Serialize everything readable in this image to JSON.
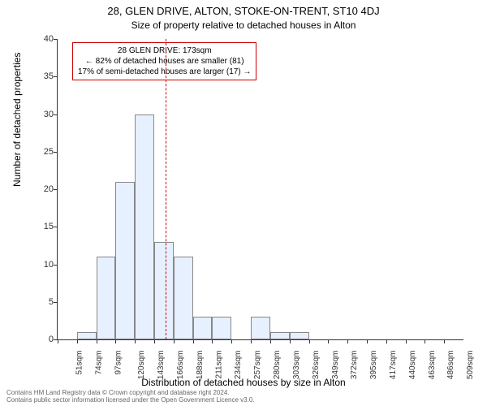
{
  "title": "28, GLEN DRIVE, ALTON, STOKE-ON-TRENT, ST10 4DJ",
  "subtitle": "Size of property relative to detached houses in Alton",
  "y_axis_label": "Number of detached properties",
  "x_axis_label": "Distribution of detached houses by size in Alton",
  "chart": {
    "type": "histogram",
    "bar_fill": "#e6f0ff",
    "bar_stroke": "#888888",
    "background": "#ffffff",
    "ylim": [
      0,
      40
    ],
    "ytick_step": 5,
    "yticks": [
      0,
      5,
      10,
      15,
      20,
      25,
      30,
      35,
      40
    ],
    "x_categories": [
      "51sqm",
      "74sqm",
      "97sqm",
      "120sqm",
      "143sqm",
      "166sqm",
      "188sqm",
      "211sqm",
      "234sqm",
      "257sqm",
      "280sqm",
      "303sqm",
      "326sqm",
      "349sqm",
      "372sqm",
      "395sqm",
      "417sqm",
      "440sqm",
      "463sqm",
      "486sqm",
      "509sqm"
    ],
    "values": [
      0,
      1,
      11,
      21,
      30,
      13,
      11,
      3,
      3,
      0,
      3,
      1,
      1,
      0,
      0,
      0,
      0,
      0,
      0,
      0,
      0
    ],
    "reference_line": {
      "x_value": 173,
      "x_min": 51,
      "x_max": 509,
      "color": "#cc0000",
      "style": "dashed"
    },
    "label_fontsize": 12,
    "tick_fontsize": 11
  },
  "annotation": {
    "line1": "28 GLEN DRIVE: 173sqm",
    "line2": "← 82% of detached houses are smaller (81)",
    "line3": "17% of semi-detached houses are larger (17) →",
    "border_color": "#cc0000",
    "background": "#ffffff",
    "fontsize": 10
  },
  "footer": {
    "line1": "Contains HM Land Registry data © Crown copyright and database right 2024.",
    "line2": "Contains public sector information licensed under the Open Government Licence v3.0."
  }
}
